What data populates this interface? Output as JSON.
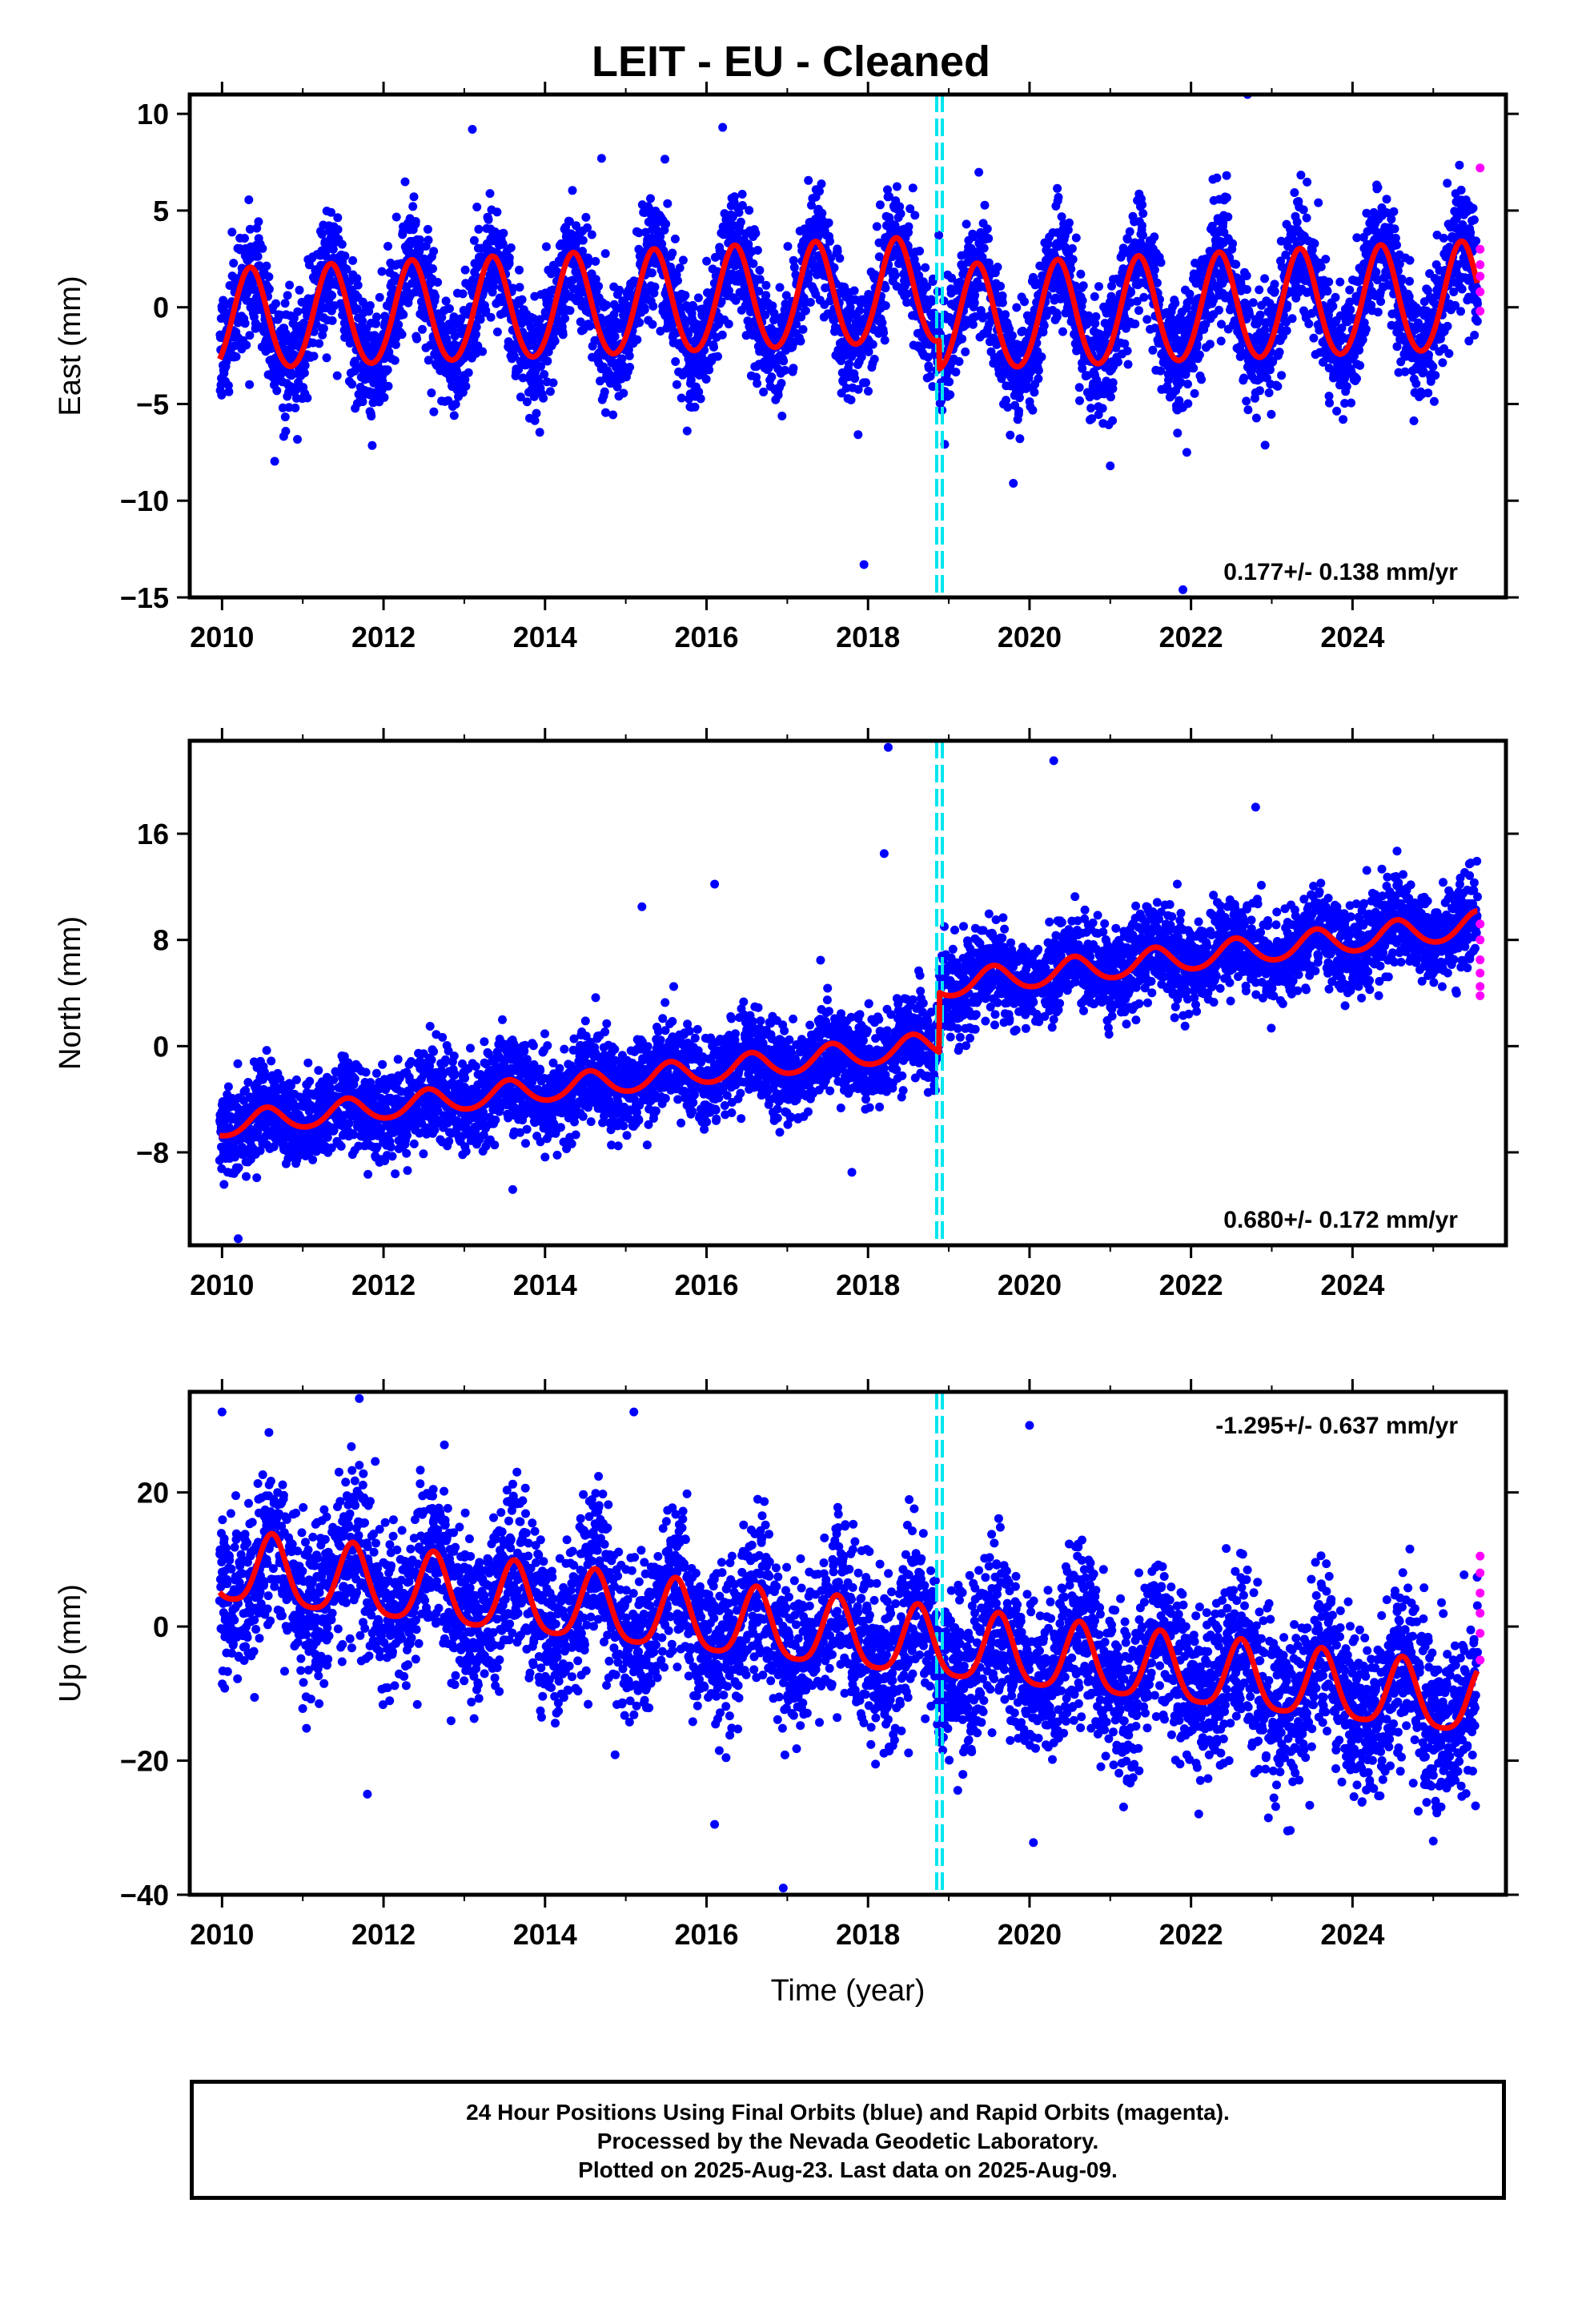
{
  "title": "LEIT  - EU - Cleaned",
  "xlabel": "Time (year)",
  "footer": [
    "24 Hour Positions Using Final Orbits (blue) and Rapid Orbits (magenta).",
    "Processed by the Nevada Geodetic Laboratory.",
    "Plotted on 2025-Aug-23. Last data on 2025-Aug-09."
  ],
  "colors": {
    "final": "#0000ff",
    "rapid": "#ff00ff",
    "model": "#ff0000",
    "offset": "#00e5ee"
  },
  "chart_data": [
    {
      "type": "scatter",
      "ylabel": "East (mm)",
      "velocity_label": "0.177+/- 0.138 mm/yr",
      "velocity_position": "bottom-right",
      "xlim": [
        2009.6,
        2025.9
      ],
      "ylim": [
        -15,
        11
      ],
      "xticks": [
        2010,
        2012,
        2014,
        2016,
        2018,
        2020,
        2022,
        2024
      ],
      "yticks": [
        -15,
        -10,
        -5,
        0,
        5,
        10
      ],
      "offset_epochs": [
        2018.85,
        2018.92
      ],
      "model": {
        "start": 2009.97,
        "end": 2025.55,
        "velocity": 0.177,
        "intercept": -0.8,
        "offset_epoch": 2018.88,
        "offset_mm": -1.5,
        "amplitude_start": 2.6,
        "amplitude_end": 2.8,
        "phase_peak": 0.35,
        "semiannual": 0.2,
        "noise": 1.5
      },
      "outliers": [
        [
          2013.1,
          9.2
        ],
        [
          2014.7,
          7.7
        ],
        [
          2016.2,
          9.3
        ],
        [
          2017.95,
          -13.3
        ],
        [
          2019.8,
          -9.1
        ],
        [
          2021.0,
          -8.2
        ],
        [
          2022.7,
          11.0
        ],
        [
          2021.9,
          -14.6
        ]
      ],
      "rapid": [
        [
          2025.58,
          7.2
        ],
        [
          2025.58,
          3.0
        ],
        [
          2025.58,
          2.2
        ],
        [
          2025.58,
          1.6
        ],
        [
          2025.58,
          0.8
        ],
        [
          2025.58,
          -0.2
        ]
      ]
    },
    {
      "type": "scatter",
      "ylabel": "North (mm)",
      "velocity_label": "0.680+/- 0.172 mm/yr",
      "velocity_position": "bottom-right",
      "xlim": [
        2009.6,
        2025.9
      ],
      "ylim": [
        -15,
        23
      ],
      "xticks": [
        2010,
        2012,
        2014,
        2016,
        2018,
        2020,
        2022,
        2024
      ],
      "yticks": [
        -8,
        0,
        8,
        16
      ],
      "offset_epochs": [
        2018.85,
        2018.92
      ],
      "model": {
        "start": 2009.97,
        "end": 2025.55,
        "velocity": 0.68,
        "intercept": -6.0,
        "offset_epoch": 2018.88,
        "offset_mm": 4.5,
        "amplitude_start": 0.9,
        "amplitude_end": 1.0,
        "phase_peak": 0.55,
        "semiannual": 0.1,
        "noise": 1.7
      },
      "outliers": [
        [
          2018.2,
          14.5
        ],
        [
          2018.25,
          22.5
        ],
        [
          2020.3,
          21.5
        ],
        [
          2016.1,
          12.2
        ],
        [
          2015.2,
          10.5
        ],
        [
          2013.6,
          -10.8
        ],
        [
          2017.8,
          -9.5
        ],
        [
          2022.8,
          18.0
        ],
        [
          2010.2,
          -14.5
        ]
      ],
      "rapid": [
        [
          2025.58,
          9.2
        ],
        [
          2025.58,
          8.0
        ],
        [
          2025.58,
          6.5
        ],
        [
          2025.58,
          5.5
        ],
        [
          2025.58,
          4.5
        ],
        [
          2025.58,
          3.8
        ]
      ]
    },
    {
      "type": "scatter",
      "ylabel": "Up (mm)",
      "velocity_label": "-1.295+/- 0.637 mm/yr",
      "velocity_position": "top-right",
      "xlim": [
        2009.6,
        2025.9
      ],
      "ylim": [
        -40,
        35
      ],
      "xticks": [
        2010,
        2012,
        2014,
        2016,
        2018,
        2020,
        2022,
        2024
      ],
      "yticks": [
        -40,
        -20,
        0,
        20
      ],
      "offset_epochs": [
        2018.85,
        2018.92
      ],
      "model": {
        "start": 2009.97,
        "end": 2025.55,
        "velocity": -1.295,
        "intercept": 8.5,
        "offset_epoch": 2018.88,
        "offset_mm": 0.0,
        "amplitude_start": 5.2,
        "amplitude_end": 5.0,
        "phase_peak": 0.62,
        "semiannual": 1.0,
        "noise": 6.0
      },
      "outliers": [
        [
          2010.0,
          32.0
        ],
        [
          2011.7,
          34.0
        ],
        [
          2015.1,
          32.0
        ],
        [
          2011.8,
          -25.0
        ],
        [
          2016.1,
          -29.5
        ],
        [
          2016.95,
          -39.0
        ],
        [
          2020.0,
          30.0
        ],
        [
          2025.0,
          -32.0
        ]
      ],
      "rapid": [
        [
          2025.58,
          10.5
        ],
        [
          2025.58,
          8.0
        ],
        [
          2025.58,
          5.0
        ],
        [
          2025.58,
          2.0
        ],
        [
          2025.58,
          -1.0
        ],
        [
          2025.58,
          -5.0
        ]
      ]
    }
  ]
}
